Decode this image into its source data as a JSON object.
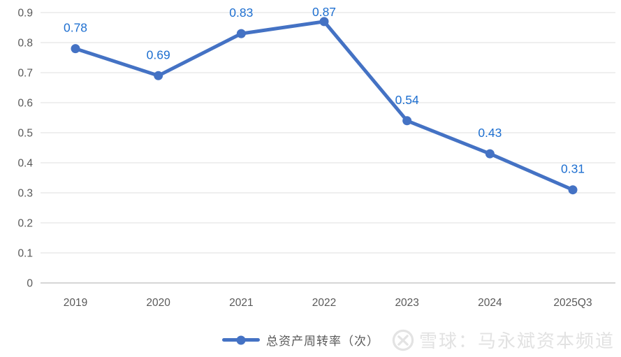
{
  "chart_data": {
    "type": "line",
    "title": "",
    "categories": [
      "2019",
      "2020",
      "2021",
      "2022",
      "2023",
      "2024",
      "2025Q3"
    ],
    "series": [
      {
        "name": "总资产周转率（次）",
        "values": [
          0.78,
          0.69,
          0.83,
          0.87,
          0.54,
          0.43,
          0.31
        ]
      }
    ],
    "data_labels": [
      "0.78",
      "0.69",
      "0.83",
      "0.87",
      "0.54",
      "0.43",
      "0.31"
    ],
    "xlabel": "",
    "ylabel": "",
    "ylim": [
      0,
      0.9
    ],
    "ytick_step": 0.1,
    "grid": true,
    "legend_position": "bottom",
    "colors": {
      "series_line": "#4472C4",
      "marker": "#4472C4",
      "data_label": "#1E6FD0",
      "axis_text": "#595959",
      "gridline": "#E5E5E5",
      "axis_line": "#C9C9C9"
    }
  },
  "legend": {
    "label": "总资产周转率（次）"
  },
  "watermark": {
    "logo": "xueqiu-logo",
    "text": "雪球：马永斌资本频道"
  }
}
